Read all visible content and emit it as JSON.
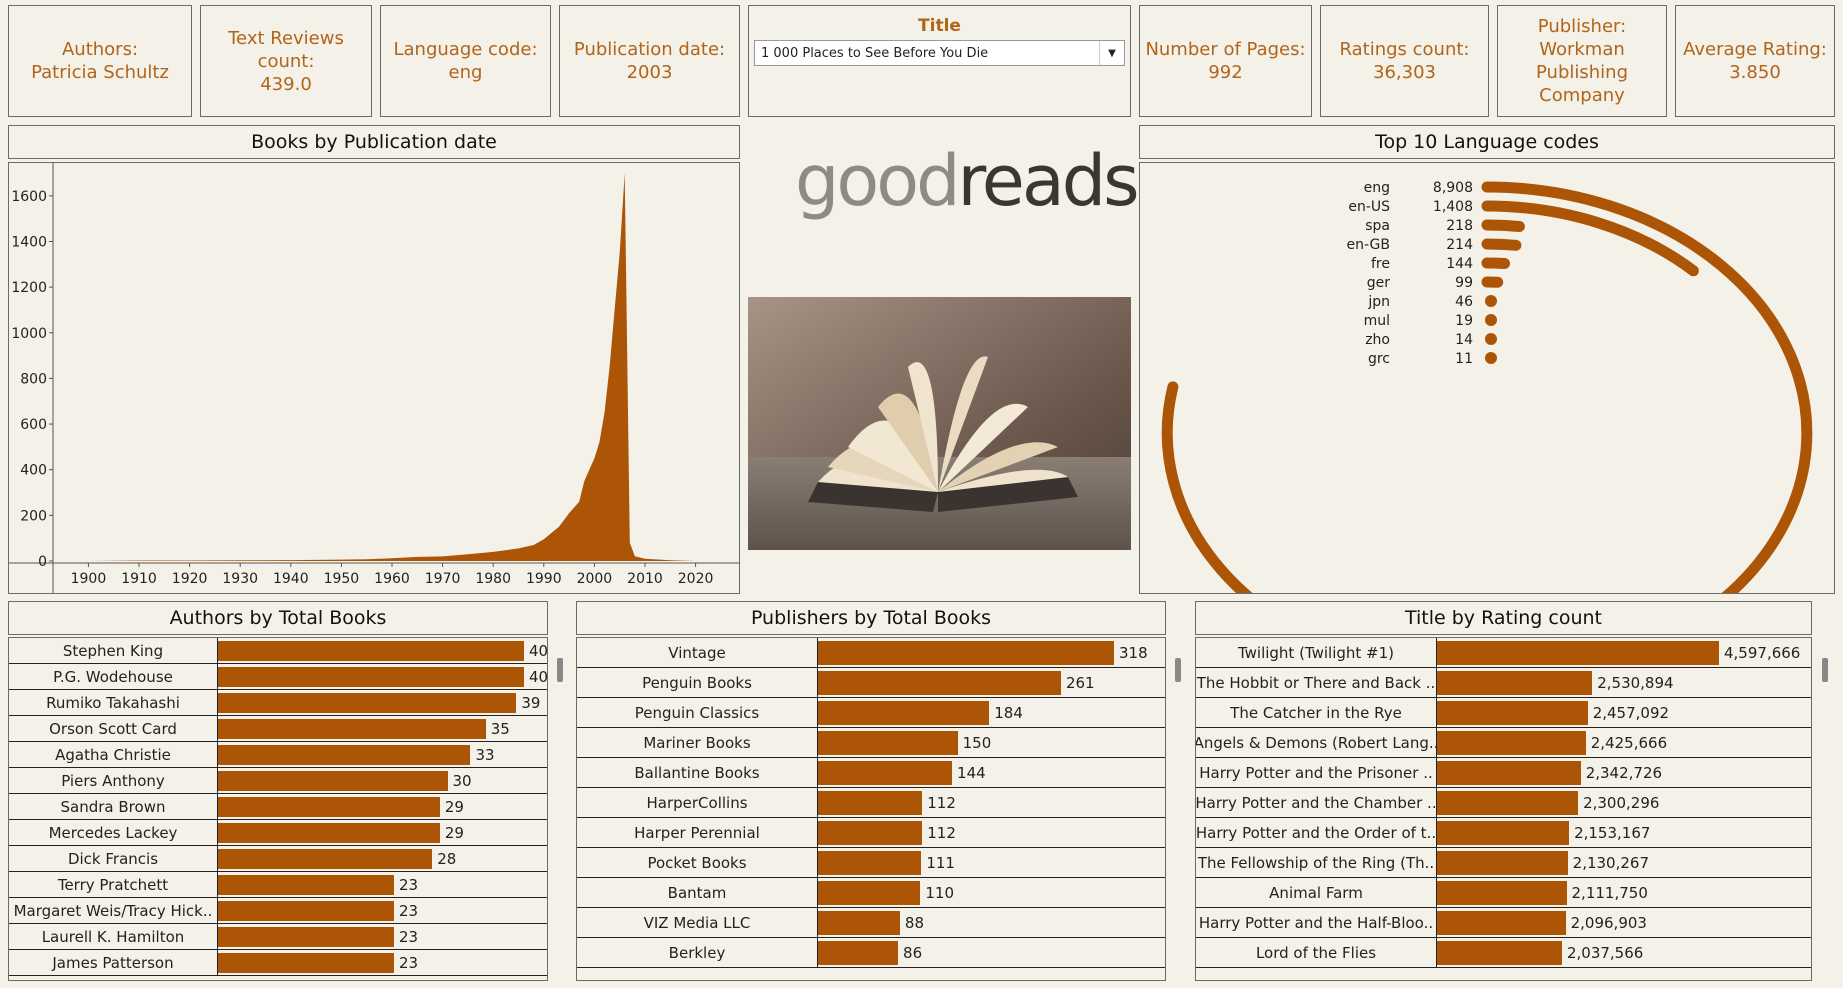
{
  "kpis": {
    "authors": {
      "label": "Authors:",
      "value": "Patricia Schultz"
    },
    "text_reviews": {
      "label": "Text Reviews count:",
      "value": "439.0"
    },
    "language": {
      "label": "Language code:",
      "value": "eng"
    },
    "pub_date": {
      "label": "Publication date:",
      "value": "2003"
    },
    "pages": {
      "label": "Number of Pages:",
      "value": "992"
    },
    "ratings": {
      "label": "Ratings count:",
      "value": "36,303"
    },
    "publisher": {
      "label": "Publisher:",
      "value": "Workman Publishing Company"
    },
    "avg_rating": {
      "label": "Average Rating:",
      "value": "3.850"
    }
  },
  "title_filter": {
    "label": "Title",
    "value": "1 000 Places to See Before You Die"
  },
  "logo": {
    "part1": "good",
    "part2": "reads"
  },
  "colors": {
    "accent": "#ad5506",
    "kpi_text": "#b0651b",
    "background": "#f4f1e9"
  },
  "charts": {
    "pub_date_title": "Books by Publication date",
    "lang_title": "Top 10 Language codes",
    "authors_title": "Authors by Total Books",
    "publishers_title": "Publishers by Total Books",
    "ratings_title": "Title by Rating count"
  },
  "chart_data": [
    {
      "type": "area",
      "title": "Books by Publication date",
      "x": [
        1900,
        1910,
        1920,
        1930,
        1940,
        1950,
        1955,
        1960,
        1965,
        1970,
        1975,
        1980,
        1985,
        1988,
        1990,
        1993,
        1995,
        1997,
        1998,
        1999,
        2000,
        2001,
        2002,
        2003,
        2004,
        2005,
        2006,
        2007,
        2008,
        2010,
        2015,
        2020
      ],
      "y": [
        0,
        2,
        2,
        3,
        4,
        6,
        8,
        12,
        18,
        20,
        30,
        40,
        55,
        70,
        95,
        150,
        210,
        260,
        350,
        400,
        450,
        520,
        650,
        850,
        1100,
        1350,
        1700,
        80,
        20,
        10,
        3,
        0
      ],
      "x_ticks": [
        "1900",
        "1910",
        "1920",
        "1930",
        "1940",
        "1950",
        "1960",
        "1970",
        "1980",
        "1990",
        "2000",
        "2010",
        "2020"
      ],
      "y_ticks": [
        "0",
        "200",
        "400",
        "600",
        "800",
        "1000",
        "1200",
        "1400",
        "1600"
      ],
      "xlim": [
        1893,
        2027
      ],
      "ylim": [
        0,
        1700
      ]
    },
    {
      "type": "bar",
      "title": "Top 10 Language codes",
      "categories": [
        "eng",
        "en-US",
        "spa",
        "en-GB",
        "fre",
        "ger",
        "jpn",
        "mul",
        "zho",
        "grc"
      ],
      "values": [
        8908,
        1408,
        218,
        214,
        144,
        99,
        46,
        19,
        14,
        11
      ],
      "labels": [
        "8,908",
        "1,408",
        "218",
        "214",
        "144",
        "99",
        "46",
        "19",
        "14",
        "11"
      ]
    },
    {
      "type": "bar",
      "title": "Authors by Total Books",
      "categories": [
        "Stephen King",
        "P.G. Wodehouse",
        "Rumiko Takahashi",
        "Orson Scott Card",
        "Agatha Christie",
        "Piers Anthony",
        "Sandra Brown",
        "Mercedes Lackey",
        "Dick Francis",
        "Terry Pratchett",
        "Margaret Weis/Tracy Hick..",
        "Laurell K. Hamilton",
        "James Patterson"
      ],
      "values": [
        40,
        40,
        39,
        35,
        33,
        30,
        29,
        29,
        28,
        23,
        23,
        23,
        23
      ]
    },
    {
      "type": "bar",
      "title": "Publishers by Total Books",
      "categories": [
        "Vintage",
        "Penguin Books",
        "Penguin Classics",
        "Mariner Books",
        "Ballantine Books",
        "HarperCollins",
        "Harper Perennial",
        "Pocket Books",
        "Bantam",
        "VIZ Media LLC",
        "Berkley"
      ],
      "values": [
        318,
        261,
        184,
        150,
        144,
        112,
        112,
        111,
        110,
        88,
        86
      ]
    },
    {
      "type": "bar",
      "title": "Title by Rating count",
      "categories": [
        "Twilight (Twilight  #1)",
        "The Hobbit  or There and Back ..",
        "The Catcher in the Rye",
        "Angels & Demons (Robert Lang..",
        "Harry Potter and the Prisoner ..",
        "Harry Potter and the Chamber ..",
        "Harry Potter and the Order of t..",
        "The Fellowship of the Ring (Th..",
        "Animal Farm",
        "Harry Potter and the Half-Bloo..",
        "Lord of the Flies"
      ],
      "values": [
        4597666,
        2530894,
        2457092,
        2425666,
        2342726,
        2300296,
        2153167,
        2130267,
        2111750,
        2096903,
        2037566
      ],
      "labels": [
        "4,597,666",
        "2,530,894",
        "2,457,092",
        "2,425,666",
        "2,342,726",
        "2,300,296",
        "2,153,167",
        "2,130,267",
        "2,111,750",
        "2,096,903",
        "2,037,566"
      ]
    }
  ]
}
